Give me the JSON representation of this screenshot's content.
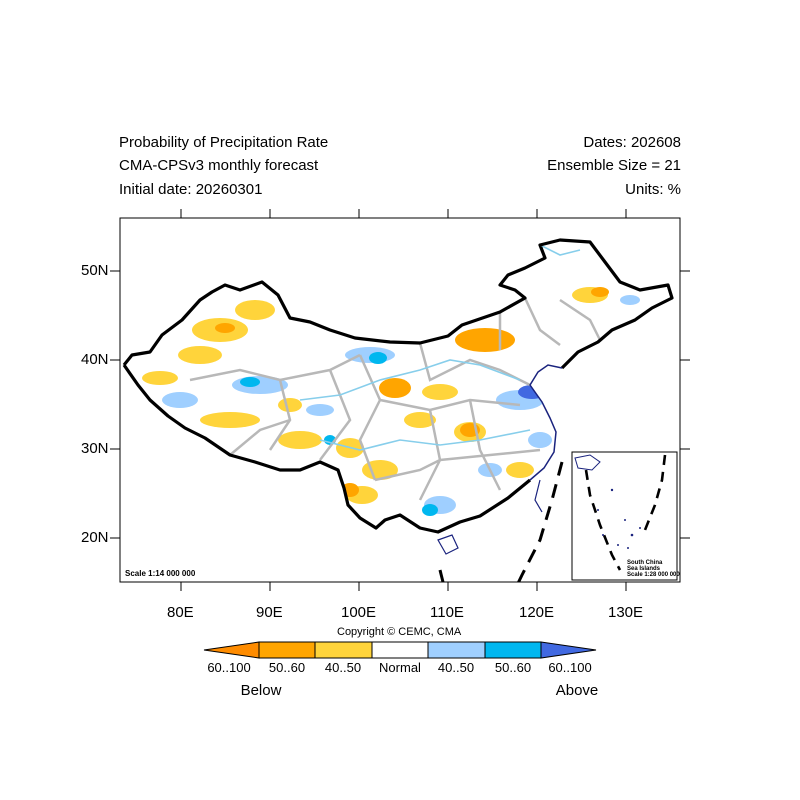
{
  "header": {
    "title_line1": "Probability of Precipitation Rate",
    "title_line2": "CMA-CPSv3 monthly forecast",
    "title_line3": "Initial date: 20260301",
    "dates": "Dates: 202608",
    "ensemble": "Ensemble Size = 21",
    "units": "Units: %"
  },
  "axes": {
    "lat_labels": [
      "50N",
      "40N",
      "30N",
      "20N"
    ],
    "lon_labels": [
      "80E",
      "90E",
      "100E",
      "110E",
      "120E",
      "130E"
    ],
    "lat_range": [
      15,
      56
    ],
    "lon_range": [
      73,
      135
    ]
  },
  "map": {
    "scale_text": "Scale 1:14 000 000",
    "copyright": "Copyright © CEMC, CMA",
    "inset": {
      "line1": "South China",
      "line2": "Sea Islands",
      "line3": "Scale 1:28 000 000"
    }
  },
  "colorbar": {
    "labels": [
      "60..100",
      "50..60",
      "40..50",
      "Normal",
      "40..50",
      "50..60",
      "60..100"
    ],
    "colors": [
      "#ff8c00",
      "#ffa500",
      "#ffd43b",
      "#ffffff",
      "#9fcfff",
      "#00b7ef",
      "#4169e1"
    ],
    "below": "Below",
    "above": "Above"
  }
}
